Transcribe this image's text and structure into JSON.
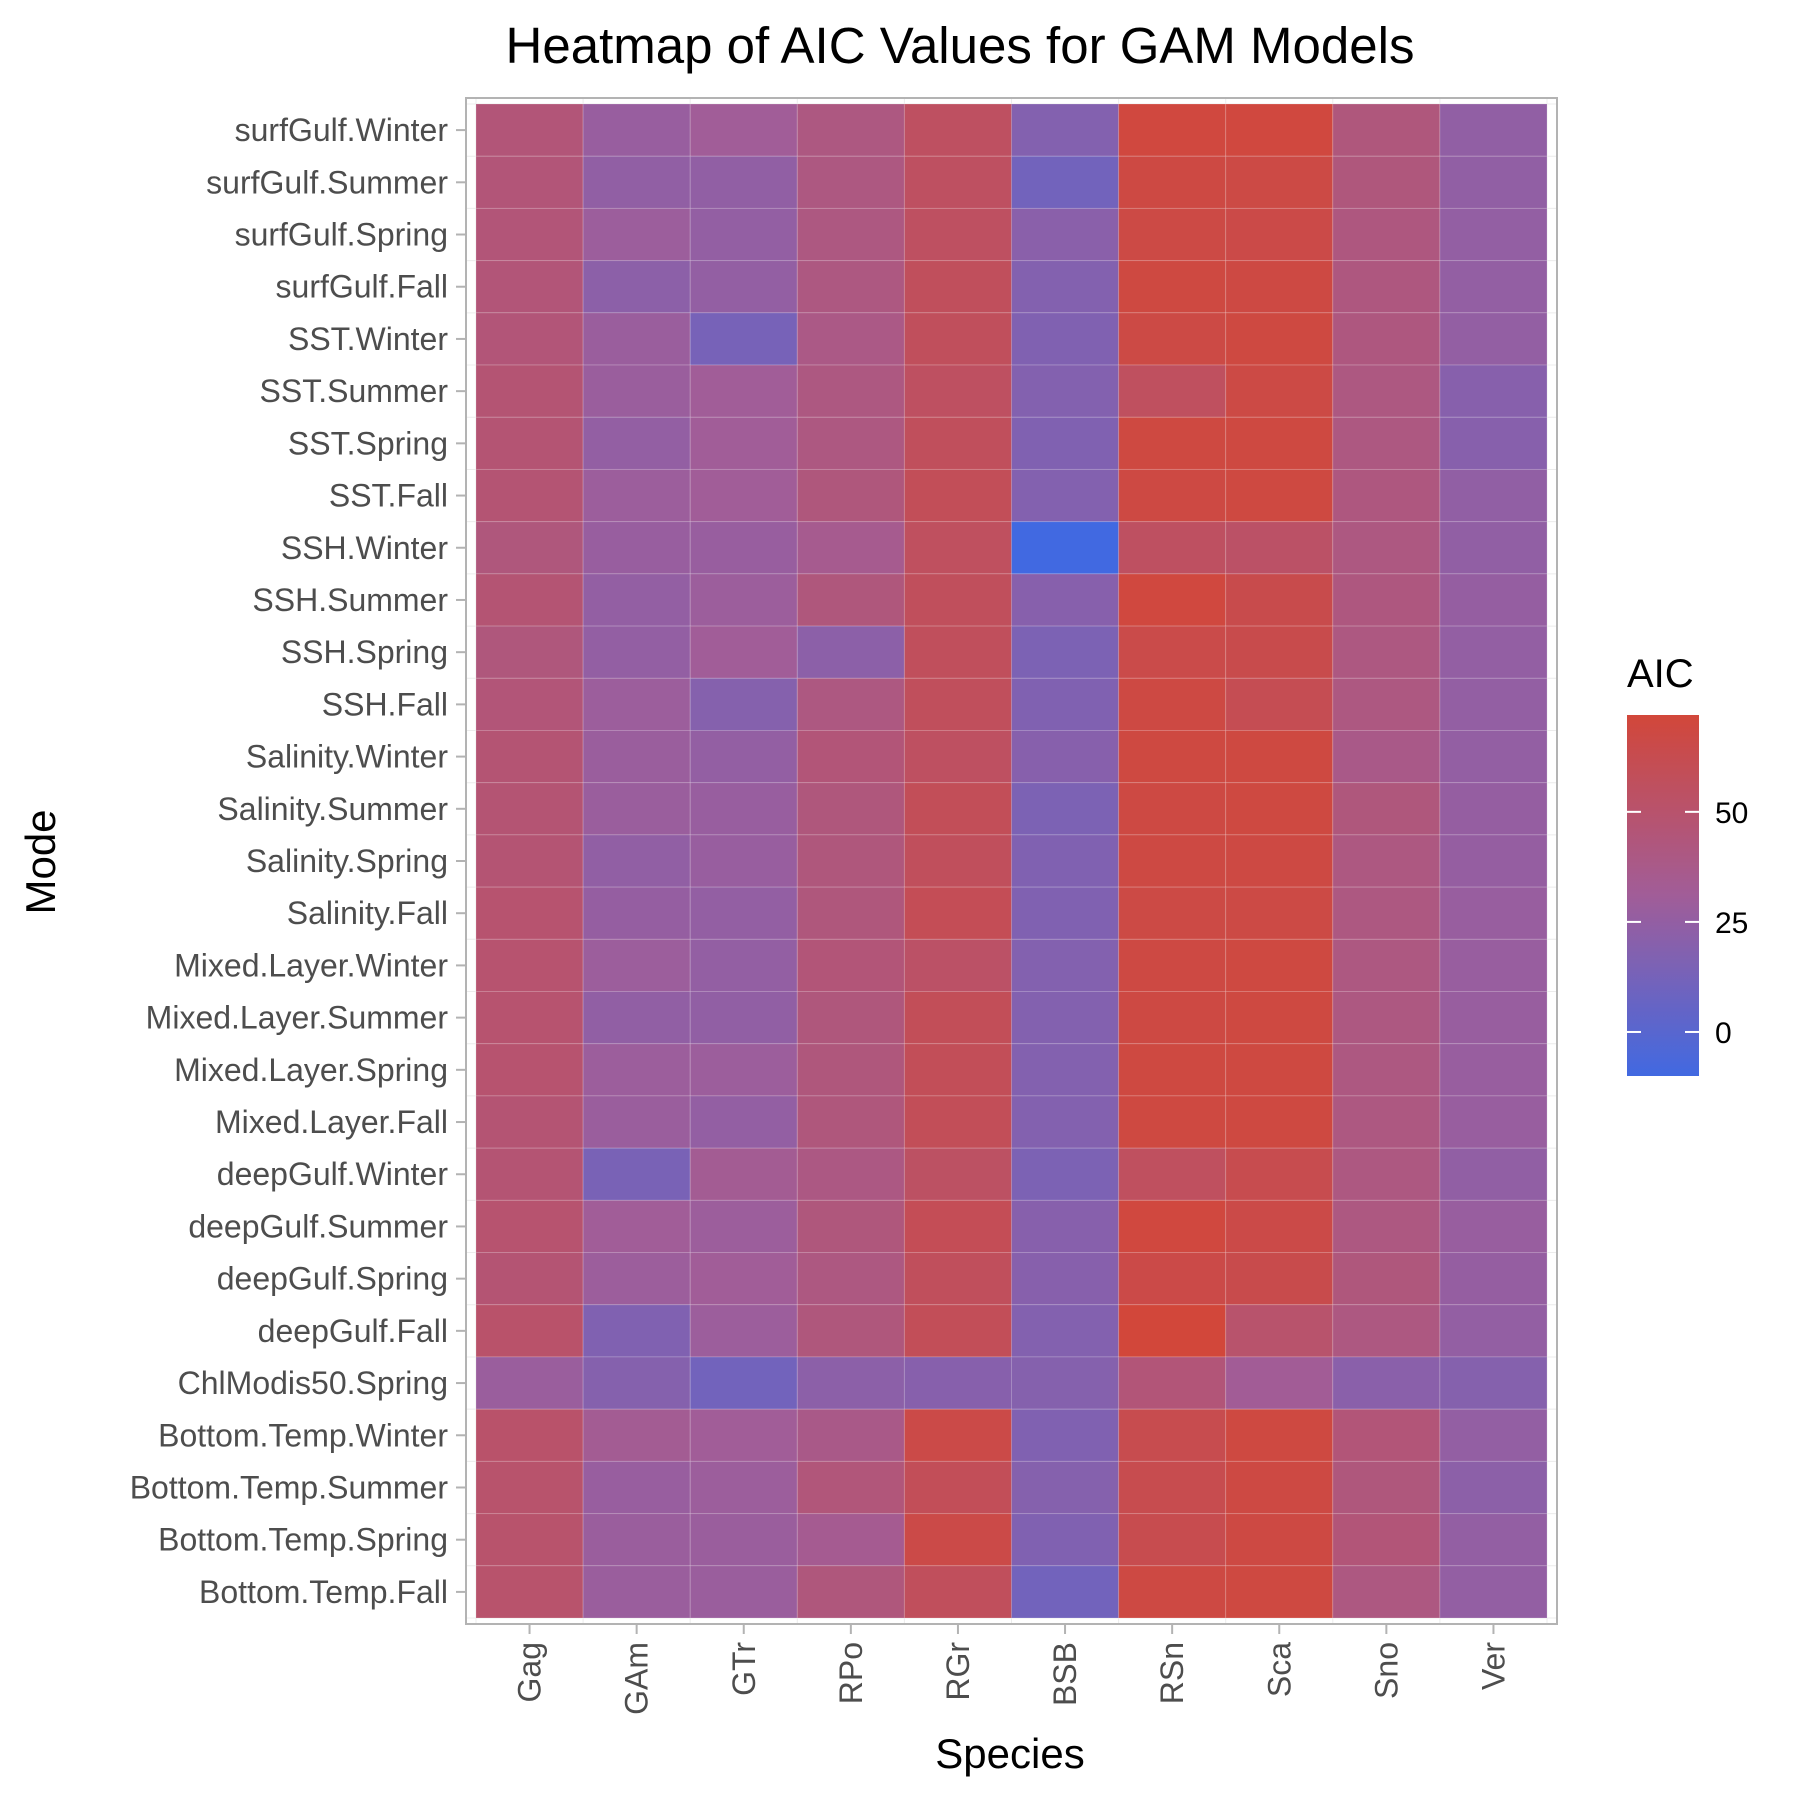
{
  "chart_data": {
    "type": "heatmap",
    "title": "Heatmap of AIC Values for GAM Models",
    "xlabel": "Species",
    "ylabel": "Mode",
    "x": [
      "Gag",
      "GAm",
      "GTr",
      "RPo",
      "RGr",
      "BSB",
      "RSn",
      "Sca",
      "Sno",
      "Ver"
    ],
    "y": [
      "surfGulf.Winter",
      "surfGulf.Summer",
      "surfGulf.Spring",
      "surfGulf.Fall",
      "SST.Winter",
      "SST.Summer",
      "SST.Spring",
      "SST.Fall",
      "SSH.Winter",
      "SSH.Summer",
      "SSH.Spring",
      "SSH.Fall",
      "Salinity.Winter",
      "Salinity.Summer",
      "Salinity.Spring",
      "Salinity.Fall",
      "Mixed.Layer.Winter",
      "Mixed.Layer.Summer",
      "Mixed.Layer.Spring",
      "Mixed.Layer.Fall",
      "deepGulf.Winter",
      "deepGulf.Summer",
      "deepGulf.Spring",
      "deepGulf.Fall",
      "ChlModis50.Spring",
      "Bottom.Temp.Winter",
      "Bottom.Temp.Summer",
      "Bottom.Temp.Spring",
      "Bottom.Temp.Fall"
    ],
    "values": [
      [
        45,
        27,
        31,
        41,
        55,
        18,
        70,
        70,
        43,
        24
      ],
      [
        45,
        24,
        24,
        41,
        55,
        11,
        68,
        67,
        43,
        24
      ],
      [
        45,
        29,
        25,
        41,
        55,
        21,
        67,
        66,
        42,
        25
      ],
      [
        45,
        22,
        25,
        41,
        57,
        18,
        69,
        68,
        42,
        25
      ],
      [
        45,
        28,
        13,
        39,
        57,
        17,
        67,
        69,
        42,
        25
      ],
      [
        47,
        28,
        31,
        41,
        55,
        18,
        56,
        67,
        41,
        20
      ],
      [
        47,
        25,
        31,
        41,
        57,
        17,
        69,
        69,
        41,
        20
      ],
      [
        47,
        29,
        31,
        43,
        59,
        18,
        68,
        69,
        42,
        24
      ],
      [
        43,
        27,
        27,
        35,
        56,
        -10,
        55,
        53,
        41,
        24
      ],
      [
        47,
        25,
        29,
        43,
        57,
        20,
        70,
        64,
        42,
        26
      ],
      [
        43,
        25,
        31,
        22,
        57,
        15,
        65,
        64,
        41,
        25
      ],
      [
        45,
        29,
        19,
        41,
        57,
        17,
        68,
        61,
        41,
        25
      ],
      [
        47,
        28,
        25,
        45,
        55,
        20,
        69,
        69,
        38,
        25
      ],
      [
        47,
        28,
        27,
        43,
        59,
        15,
        68,
        69,
        43,
        26
      ],
      [
        47,
        24,
        27,
        43,
        57,
        17,
        68,
        68,
        41,
        26
      ],
      [
        49,
        26,
        25,
        43,
        60,
        17,
        67,
        67,
        41,
        27
      ],
      [
        49,
        29,
        25,
        45,
        53,
        18,
        68,
        69,
        41,
        27
      ],
      [
        49,
        24,
        24,
        43,
        59,
        18,
        68,
        69,
        41,
        27
      ],
      [
        49,
        29,
        29,
        43,
        59,
        18,
        69,
        69,
        41,
        27
      ],
      [
        47,
        28,
        25,
        43,
        59,
        18,
        69,
        69,
        41,
        27
      ],
      [
        47,
        14,
        33,
        40,
        54,
        15,
        56,
        63,
        41,
        24
      ],
      [
        49,
        31,
        29,
        43,
        60,
        20,
        70,
        66,
        41,
        27
      ],
      [
        47,
        29,
        31,
        41,
        57,
        20,
        66,
        64,
        43,
        26
      ],
      [
        51,
        17,
        29,
        43,
        59,
        18,
        72,
        50,
        41,
        25
      ],
      [
        28,
        19,
        11,
        22,
        20,
        19,
        45,
        32,
        21,
        19
      ],
      [
        51,
        33,
        31,
        38,
        66,
        17,
        63,
        69,
        45,
        25
      ],
      [
        50,
        27,
        29,
        44,
        59,
        19,
        63,
        68,
        43,
        22
      ],
      [
        50,
        28,
        28,
        34,
        66,
        17,
        63,
        68,
        45,
        25
      ],
      [
        50,
        28,
        28,
        43,
        57,
        11,
        68,
        69,
        41,
        25
      ]
    ],
    "legend": {
      "title": "AIC",
      "ticks": [
        0,
        25,
        50
      ],
      "range": [
        -10,
        72
      ],
      "placement": "right"
    },
    "colors": {
      "low": "#4169e1",
      "mid": "#a15d98",
      "high": "#d2473a"
    },
    "grid": true
  }
}
